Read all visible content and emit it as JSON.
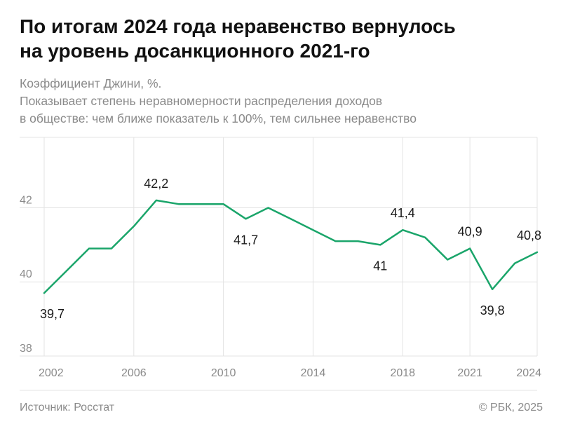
{
  "header": {
    "title_line1": "По итогам 2024 года неравенство вернулось",
    "title_line2": "на уровень досанкционного 2021-го",
    "subtitle_line1": "Коэффициент Джини, %.",
    "subtitle_line2": "Показывает степень неравномерности распределения доходов",
    "subtitle_line3": "в обществе: чем ближе показатель к 100%, тем сильнее неравенство"
  },
  "footer": {
    "source": "Источник: Росстат",
    "copyright": "© РБК, 2025"
  },
  "colors": {
    "line": "#1aa56a",
    "grid": "#e3e3e3",
    "tick_text": "#8a8a8a"
  },
  "chart_data": {
    "type": "line",
    "x": [
      2002,
      2003,
      2004,
      2005,
      2006,
      2007,
      2008,
      2009,
      2010,
      2011,
      2012,
      2013,
      2014,
      2015,
      2016,
      2017,
      2018,
      2019,
      2020,
      2021,
      2022,
      2023,
      2024
    ],
    "series": [
      {
        "values": [
          39.7,
          40.3,
          40.9,
          40.9,
          41.5,
          42.2,
          42.1,
          42.1,
          42.1,
          41.7,
          42.0,
          41.7,
          41.4,
          41.1,
          41.1,
          41.0,
          41.4,
          41.2,
          40.6,
          40.9,
          39.8,
          40.5,
          40.8
        ]
      }
    ],
    "xticks": [
      2002,
      2006,
      2010,
      2014,
      2018,
      2021,
      2024
    ],
    "xtick_labels": [
      "2002",
      "2006",
      "2010",
      "2014",
      "2018",
      "2021",
      "2024"
    ],
    "yticks": [
      38,
      40,
      42
    ],
    "ytick_labels": [
      "38",
      "40",
      "42"
    ],
    "ylim": [
      38,
      43.9
    ],
    "xlim": [
      2002,
      2024
    ],
    "grid": true,
    "annotations": [
      {
        "x": 2002,
        "y": 39.7,
        "text": "39,7",
        "position": "below"
      },
      {
        "x": 2007,
        "y": 42.2,
        "text": "42,2",
        "position": "above"
      },
      {
        "x": 2011,
        "y": 41.7,
        "text": "41,7",
        "position": "below"
      },
      {
        "x": 2017,
        "y": 41.0,
        "text": "41",
        "position": "below"
      },
      {
        "x": 2018,
        "y": 41.4,
        "text": "41,4",
        "position": "above"
      },
      {
        "x": 2021,
        "y": 40.9,
        "text": "40,9",
        "position": "above"
      },
      {
        "x": 2022,
        "y": 39.8,
        "text": "39,8",
        "position": "below"
      },
      {
        "x": 2024,
        "y": 40.8,
        "text": "40,8",
        "position": "above"
      }
    ]
  }
}
